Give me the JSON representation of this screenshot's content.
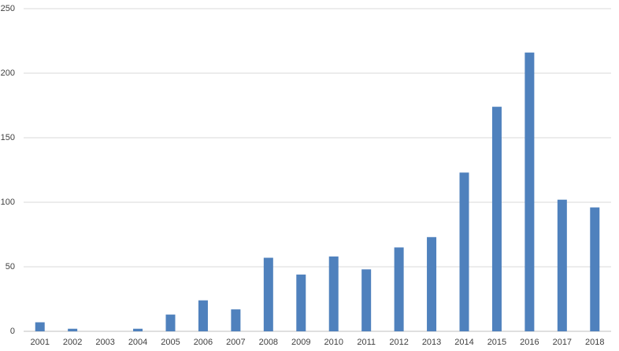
{
  "chart_data": {
    "type": "bar",
    "categories": [
      "2001",
      "2002",
      "2003",
      "2004",
      "2005",
      "2006",
      "2007",
      "2008",
      "2009",
      "2010",
      "2011",
      "2012",
      "2013",
      "2014",
      "2015",
      "2016",
      "2017",
      "2018"
    ],
    "values": [
      7,
      2,
      0,
      2,
      13,
      24,
      17,
      57,
      44,
      58,
      48,
      65,
      73,
      123,
      174,
      216,
      102,
      96
    ],
    "color": "#4f81bd",
    "ylim": [
      0,
      250
    ],
    "yticks": [
      0,
      50,
      100,
      150,
      200,
      250
    ],
    "grid": true
  }
}
